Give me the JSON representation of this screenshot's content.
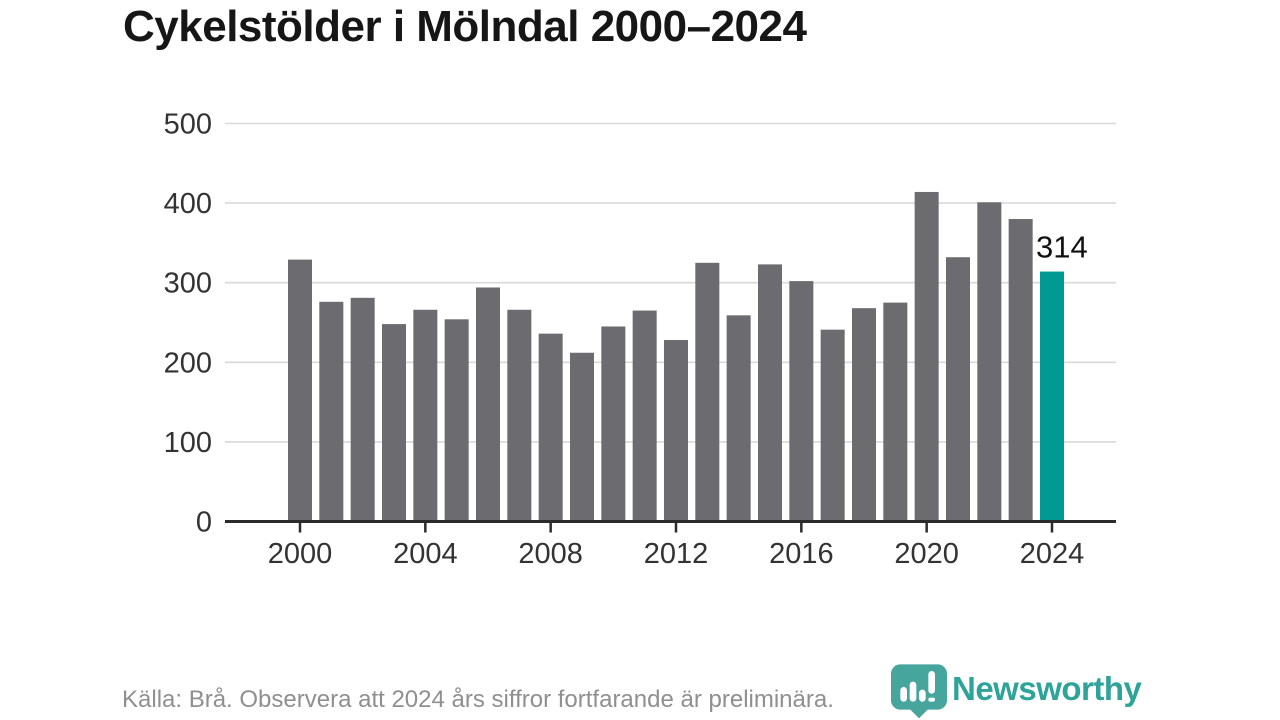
{
  "title": "Cykelstölder i Mölndal 2000–2024",
  "footer": {
    "source_note": "Källa: Brå. Observera att 2024 års siffror fortfarande är preliminära."
  },
  "logo": {
    "name": "Newsworthy",
    "icon": "bar-chart-pin-icon"
  },
  "colors": {
    "bar": "#6b6b70",
    "bar_highlight": "#009a92",
    "gridline": "#d9d9d9",
    "axis": "#2b2b2b",
    "tick_label": "#333333",
    "title": "#161616",
    "footer_text": "#8f8f8f",
    "logo_teal": "#2ea39a",
    "badge_teal": "#46a59d",
    "annotation_text": "#111111",
    "annotation_halo": "#ffffff"
  },
  "chart_data": {
    "type": "bar",
    "title": "Cykelstölder i Mölndal 2000–2024",
    "xlabel": "",
    "ylabel": "",
    "x": [
      2000,
      2001,
      2002,
      2003,
      2004,
      2005,
      2006,
      2007,
      2008,
      2009,
      2010,
      2011,
      2012,
      2013,
      2014,
      2015,
      2016,
      2017,
      2018,
      2019,
      2020,
      2021,
      2022,
      2023,
      2024
    ],
    "values": [
      329,
      276,
      281,
      248,
      266,
      254,
      294,
      266,
      236,
      212,
      245,
      265,
      228,
      325,
      259,
      323,
      302,
      241,
      268,
      275,
      414,
      332,
      401,
      380,
      314
    ],
    "highlight_index": 24,
    "annotation": {
      "text": "314",
      "index": 24,
      "value": 314
    },
    "ylim": [
      0,
      500
    ],
    "yticks": [
      0,
      100,
      200,
      300,
      400,
      500
    ],
    "xticks": [
      2000,
      2004,
      2008,
      2012,
      2016,
      2020,
      2024
    ],
    "grid": true,
    "legend": false
  }
}
